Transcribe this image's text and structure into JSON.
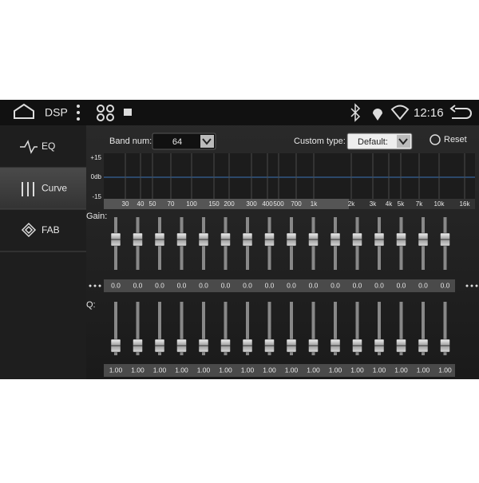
{
  "status_bar": {
    "app_title": "DSP",
    "time": "12:16"
  },
  "sidebar": {
    "items": [
      "EQ",
      "Curve",
      "FAB"
    ]
  },
  "controls": {
    "band_num_label": "Band num:",
    "band_num_value": "64",
    "custom_type_label": "Custom type:",
    "custom_type_value": "Default:",
    "reset_label": "Reset"
  },
  "graph": {
    "y_labels": [
      "+15",
      "0db",
      "-15"
    ],
    "x_labels": [
      "30",
      "40",
      "50",
      "70",
      "100",
      "150",
      "200",
      "300",
      "400",
      "500",
      "700",
      "1k",
      "2k",
      "3k",
      "4k",
      "5k",
      "7k",
      "10k",
      "16k"
    ]
  },
  "gain": {
    "label": "Gain:",
    "values": [
      "0.0",
      "0.0",
      "0.0",
      "0.0",
      "0.0",
      "0.0",
      "0.0",
      "0.0",
      "0.0",
      "0.0",
      "0.0",
      "0.0",
      "0.0",
      "0.0",
      "0.0",
      "0.0"
    ]
  },
  "q": {
    "label": "Q:",
    "values": [
      "1.00",
      "1.00",
      "1.00",
      "1.00",
      "1.00",
      "1.00",
      "1.00",
      "1.00",
      "1.00",
      "1.00",
      "1.00",
      "1.00",
      "1.00",
      "1.00",
      "1.00",
      "1.00"
    ]
  }
}
